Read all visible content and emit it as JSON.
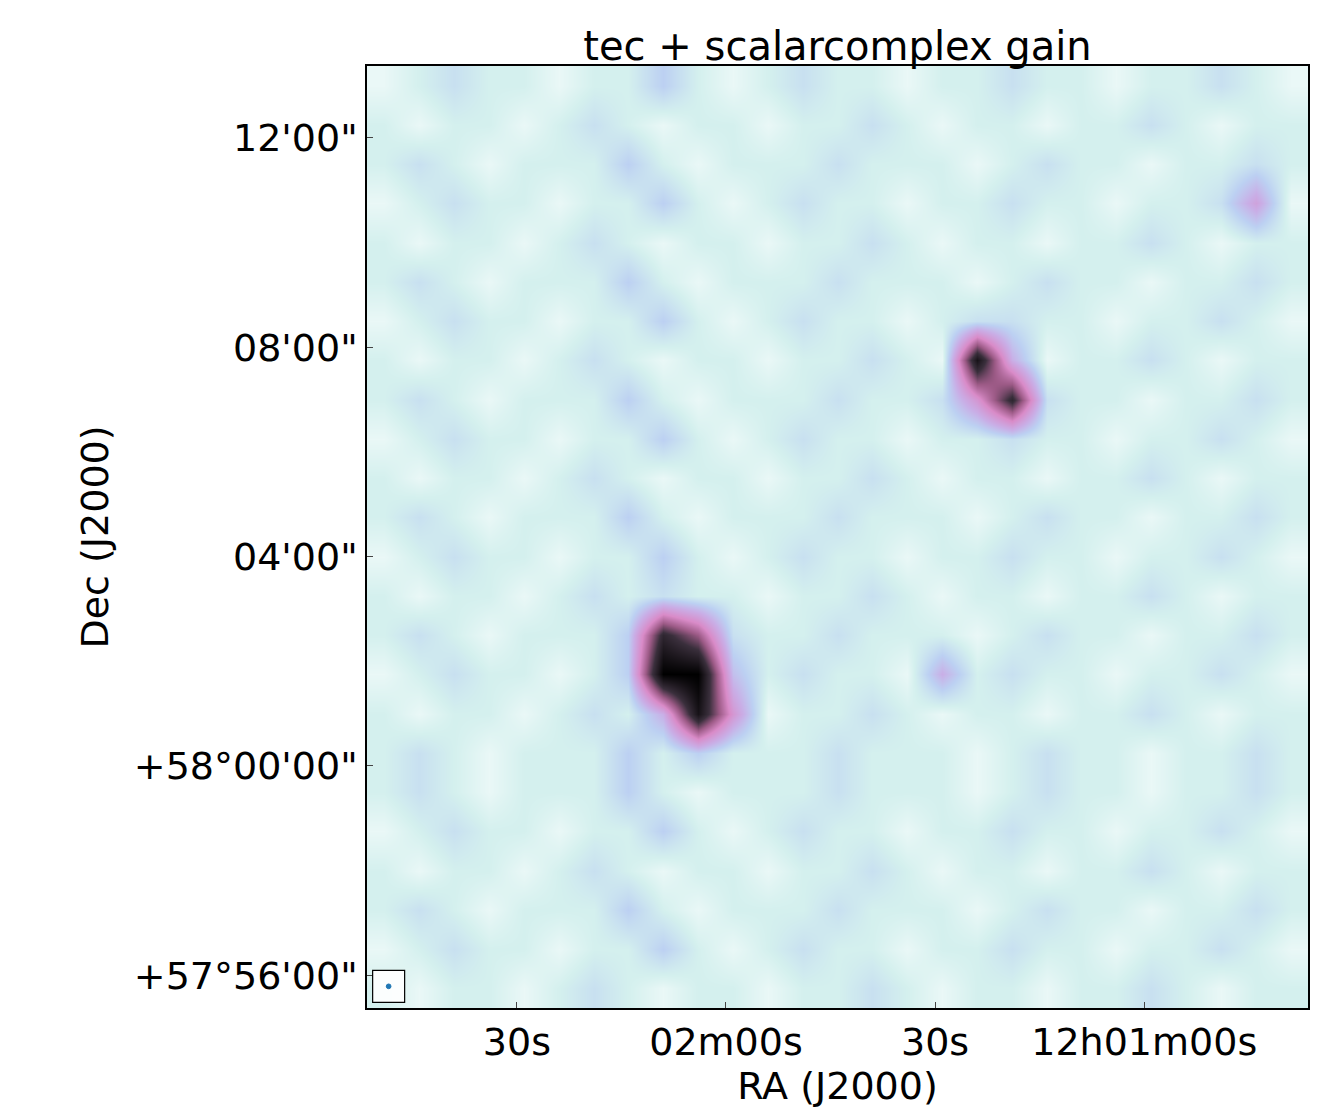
{
  "chart_data": {
    "type": "heatmap",
    "title": "tec + scalarcomplex gain",
    "x_label": "RA (J2000)",
    "y_label": "Dec (J2000)",
    "xlim": [
      43371.5,
      43236.5
    ],
    "xticks": [
      {
        "value": 43350,
        "label": "30s"
      },
      {
        "value": 43320,
        "label": "02m00s"
      },
      {
        "value": 43290,
        "label": "30s"
      },
      {
        "value": 43260,
        "label": "12h01m00s"
      }
    ],
    "ylim": [
      3475.375,
      3493.375
    ],
    "yticks": [
      {
        "value": 3476,
        "label": "+57°56'00\""
      },
      {
        "value": 3480,
        "label": "+58°00'00\""
      },
      {
        "value": 3484,
        "label": "04'00\""
      },
      {
        "value": 3488,
        "label": "08'00\""
      },
      {
        "value": 3492,
        "label": "12'00\""
      }
    ],
    "grid": false,
    "x": [
      43369,
      43364,
      43359,
      43354,
      43349,
      43344,
      43339,
      43334,
      43329,
      43324,
      43319,
      43314,
      43309,
      43304,
      43299,
      43294,
      43289,
      43284,
      43279,
      43274,
      43269,
      43264,
      43259,
      43254,
      43249,
      43244,
      43239
    ],
    "y": [
      3475.75,
      3476.5,
      3477.25,
      3478,
      3478.75,
      3479.5,
      3480.25,
      3481,
      3481.75,
      3482.5,
      3483.25,
      3484,
      3484.75,
      3485.5,
      3486.25,
      3487,
      3487.75,
      3488.5,
      3489.25,
      3490,
      3490.75,
      3491.5,
      3492.25,
      3493
    ],
    "zlim": [
      0,
      10
    ],
    "cells": [
      [
        1,
        0.5,
        1,
        1,
        0.5,
        1,
        1.5,
        1,
        0.5,
        1,
        1,
        0.5,
        1,
        1,
        1.5,
        1,
        0.5,
        1,
        1,
        0.5,
        1,
        1,
        1.5,
        1,
        0.5,
        1,
        1
      ],
      [
        0.5,
        1,
        1.5,
        1,
        1,
        0.5,
        1,
        1,
        2,
        1,
        0.5,
        1,
        1.5,
        1,
        1,
        0.5,
        1,
        1,
        1.5,
        1,
        1,
        0.5,
        1,
        1,
        1.5,
        1,
        0.5
      ],
      [
        1,
        1.5,
        1,
        0.5,
        1,
        1,
        1,
        2,
        1,
        0.5,
        1,
        1,
        1,
        1.5,
        1,
        1,
        1,
        0.5,
        1,
        1.5,
        1,
        1,
        0.5,
        1,
        1,
        1.5,
        1
      ],
      [
        1,
        0.5,
        1,
        1,
        0.5,
        1,
        1.5,
        1,
        0.5,
        1,
        1,
        0.5,
        1,
        1,
        1.5,
        1,
        0.5,
        1,
        1,
        0.5,
        1,
        1,
        1.5,
        1,
        0.5,
        1,
        1
      ],
      [
        0.5,
        1,
        1.5,
        1,
        1,
        0.5,
        1,
        1,
        2,
        1,
        0.5,
        1,
        1.5,
        1,
        1,
        0.5,
        1,
        1,
        1.5,
        1,
        1,
        0.5,
        1,
        1,
        1.5,
        1,
        0.5
      ],
      [
        1,
        1.5,
        1,
        0.5,
        1,
        1,
        1,
        2,
        1,
        0.5,
        1,
        1,
        1,
        1.5,
        1,
        1,
        1,
        0.5,
        1,
        1.5,
        1,
        1,
        0.5,
        1,
        1,
        1.5,
        1
      ],
      [
        1,
        1.5,
        1,
        0.5,
        1,
        1,
        1,
        2,
        1,
        2,
        1,
        1,
        1,
        1.5,
        1,
        1,
        1,
        0.5,
        1,
        1.5,
        1,
        1,
        0.5,
        1,
        1,
        1.5,
        1
      ],
      [
        1,
        0.5,
        1,
        1,
        0.5,
        1,
        1.5,
        1,
        3,
        9,
        4,
        0.5,
        1,
        1,
        1.5,
        1,
        0.5,
        1,
        1,
        0.5,
        1,
        1,
        1.5,
        1,
        0.5,
        1,
        1
      ],
      [
        0.5,
        1,
        1.5,
        1,
        1,
        0.5,
        1,
        2,
        10,
        10,
        2.5,
        1,
        1.5,
        1,
        1,
        0.5,
        3,
        1,
        1.5,
        1,
        1,
        0.5,
        1,
        1,
        1.5,
        1,
        0.5
      ],
      [
        1,
        1.5,
        1,
        0.5,
        1,
        1,
        1,
        2,
        8,
        6,
        1.5,
        1,
        1,
        1.5,
        1,
        1,
        1,
        0.5,
        1,
        1.5,
        1,
        1,
        0.5,
        1,
        1,
        1.5,
        1
      ],
      [
        1,
        0.5,
        1,
        1,
        0.5,
        1,
        1.5,
        1,
        1.5,
        1,
        1,
        0.5,
        1,
        1,
        1.5,
        1,
        0.5,
        1,
        1,
        0.5,
        1,
        1,
        1.5,
        1,
        0.5,
        1,
        1
      ],
      [
        0.5,
        1,
        1.5,
        1,
        1,
        0.5,
        1,
        1,
        2,
        1,
        0.5,
        1,
        1.5,
        1,
        1,
        0.5,
        1,
        1,
        1.5,
        1,
        1,
        0.5,
        1,
        1,
        1.5,
        1,
        0.5
      ],
      [
        1,
        1.5,
        1,
        0.5,
        1,
        1,
        1,
        2,
        1,
        0.5,
        1,
        1,
        1,
        1.5,
        1,
        1,
        1,
        0.5,
        1,
        1.5,
        1,
        1,
        0.5,
        1,
        1,
        1.5,
        1
      ],
      [
        1,
        0.5,
        1,
        1,
        0.5,
        1,
        1.5,
        1,
        0.5,
        1,
        1,
        0.5,
        1,
        1,
        1.5,
        1,
        0.5,
        1,
        1,
        0.5,
        1,
        1,
        1.5,
        1,
        0.5,
        1,
        1
      ],
      [
        0.5,
        1,
        1.5,
        1,
        1,
        0.5,
        1,
        1,
        2,
        1,
        0.5,
        1,
        1.5,
        1,
        1,
        0.5,
        1,
        1,
        1.5,
        1,
        1,
        0.5,
        1,
        1,
        1.5,
        1,
        0.5
      ],
      [
        1,
        1.5,
        1,
        0.5,
        1,
        1,
        1,
        2,
        1,
        0.5,
        1,
        1,
        1,
        1.5,
        1,
        1,
        1.5,
        4,
        8,
        1.5,
        1,
        1,
        0.5,
        1,
        1,
        1.5,
        1
      ],
      [
        1,
        0.5,
        1,
        1,
        0.5,
        1,
        1.5,
        1,
        0.5,
        1,
        1,
        0.5,
        1,
        1,
        1.5,
        1,
        0.5,
        9,
        3,
        0.5,
        1,
        1,
        1.5,
        1,
        0.5,
        1,
        1
      ],
      [
        0.5,
        1,
        1.5,
        1,
        1,
        0.5,
        1,
        1,
        2,
        1,
        0.5,
        1,
        1.5,
        1,
        1,
        0.5,
        1,
        1.5,
        1.5,
        1,
        1,
        0.5,
        1,
        1,
        1.5,
        1,
        0.5
      ],
      [
        1,
        1.5,
        1,
        0.5,
        1,
        1,
        1,
        2,
        1,
        0.5,
        1,
        1,
        1,
        1.5,
        1,
        1,
        1,
        0.5,
        1,
        1.5,
        1,
        1,
        0.5,
        1,
        1,
        1.5,
        1
      ],
      [
        1,
        0.5,
        1,
        1,
        0.5,
        1,
        1.5,
        1,
        0.5,
        1,
        1,
        0.5,
        1,
        1,
        1.5,
        1,
        0.5,
        1,
        1,
        0.5,
        1,
        1,
        1.5,
        1,
        0.5,
        1,
        1
      ],
      [
        0.5,
        1,
        1.5,
        1,
        1,
        0.5,
        1,
        1,
        2,
        1,
        0.5,
        1,
        1.5,
        1,
        1,
        0.5,
        1,
        1,
        1.5,
        1,
        1,
        0.5,
        1,
        1,
        1.5,
        3.5,
        0.5
      ],
      [
        1,
        1.5,
        1,
        0.5,
        1,
        1,
        1,
        2,
        1,
        0.5,
        1,
        1,
        1,
        1.5,
        1,
        1,
        1,
        0.5,
        1,
        1.5,
        1,
        1,
        0.5,
        1,
        1,
        1.5,
        1
      ],
      [
        1,
        0.5,
        1,
        1,
        0.5,
        1,
        1.5,
        1,
        0.5,
        1,
        1,
        0.5,
        1,
        1,
        1.5,
        1,
        0.5,
        1,
        1,
        0.5,
        1,
        1,
        1.5,
        1,
        0.5,
        1,
        1
      ],
      [
        0.5,
        1,
        1.5,
        1,
        1,
        0.5,
        1,
        1,
        2,
        1,
        0.5,
        1,
        1.5,
        1,
        1,
        0.5,
        1,
        1,
        1.5,
        1,
        1,
        0.5,
        1,
        1,
        1.5,
        1,
        0.5
      ]
    ]
  }
}
